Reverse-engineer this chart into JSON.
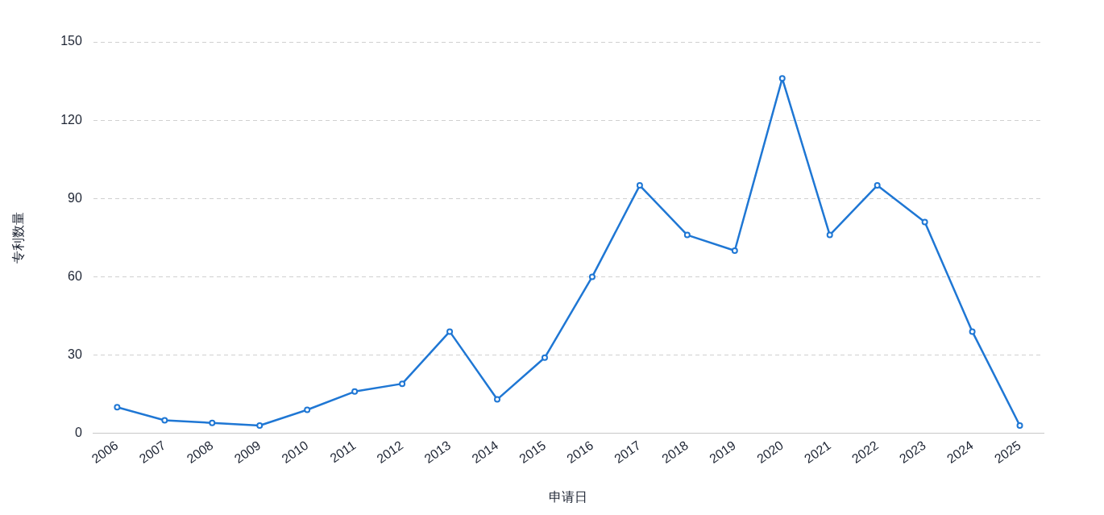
{
  "chart_data": {
    "type": "line",
    "xlabel": "申请日",
    "ylabel": "专利数量",
    "categories": [
      "2006",
      "2007",
      "2008",
      "2009",
      "2010",
      "2011",
      "2012",
      "2013",
      "2014",
      "2015",
      "2016",
      "2017",
      "2018",
      "2019",
      "2020",
      "2021",
      "2022",
      "2023",
      "2024",
      "2025"
    ],
    "series": [
      {
        "color": "#1f77d4",
        "values": [
          10,
          5,
          4,
          3,
          9,
          16,
          19,
          39,
          13,
          29,
          60,
          95,
          76,
          70,
          136,
          76,
          95,
          81,
          39,
          3
        ]
      }
    ],
    "ylim": [
      0,
      150
    ],
    "yticks": [
      0,
      30,
      60,
      90,
      120,
      150
    ],
    "grid": "y",
    "legend": false,
    "marker": "circle",
    "line_style": "solid"
  }
}
